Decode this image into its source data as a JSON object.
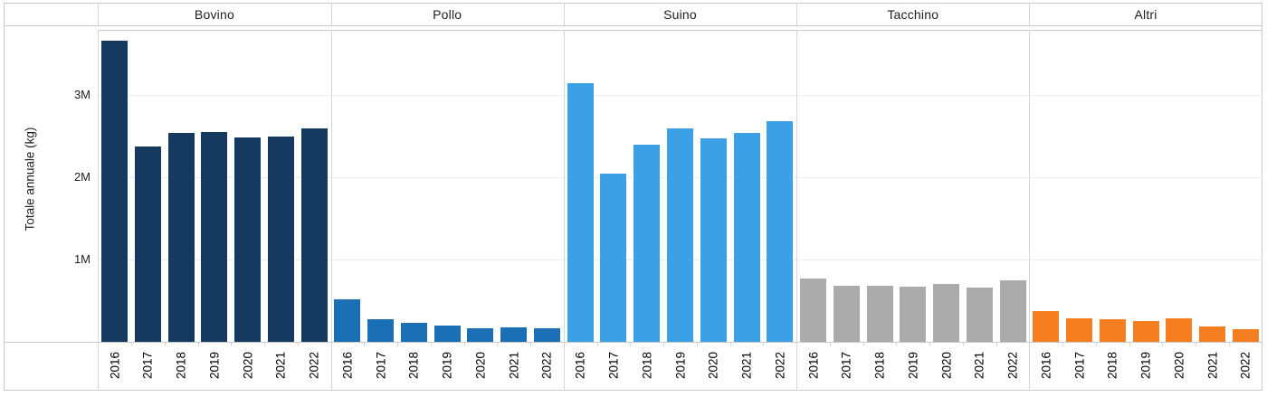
{
  "chart_data": {
    "type": "bar",
    "title": "",
    "ylabel": "Totale annuale (kg)",
    "xlabel": "",
    "facet_layout": "columns",
    "grid": true,
    "legend": "none",
    "ylim": [
      0,
      3790000
    ],
    "years": [
      "2016",
      "2017",
      "2018",
      "2019",
      "2020",
      "2021",
      "2022"
    ],
    "yticks": [
      {
        "label": "1M",
        "value": 1000000
      },
      {
        "label": "2M",
        "value": 2000000
      },
      {
        "label": "3M",
        "value": 3000000
      }
    ],
    "panels": [
      {
        "name": "Bovino",
        "color": "#16395F",
        "values_kg": [
          3660000,
          2370000,
          2540000,
          2550000,
          2480000,
          2490000,
          2590000
        ]
      },
      {
        "name": "Pollo",
        "color": "#1A6FB5",
        "values_kg": [
          520000,
          280000,
          230000,
          200000,
          160000,
          180000,
          170000
        ]
      },
      {
        "name": "Suino",
        "color": "#3CA0E6",
        "values_kg": [
          3140000,
          2040000,
          2400000,
          2590000,
          2470000,
          2540000,
          2680000
        ]
      },
      {
        "name": "Tacchino",
        "color": "#ABABAB",
        "values_kg": [
          770000,
          680000,
          680000,
          670000,
          700000,
          660000,
          750000
        ]
      },
      {
        "name": "Altri",
        "color": "#F57E20",
        "values_kg": [
          370000,
          290000,
          270000,
          250000,
          290000,
          190000,
          150000
        ]
      }
    ],
    "frame_colors": {
      "border": "#c9c9c9",
      "separator": "#d6d6d6",
      "gridline": "#ededed"
    }
  }
}
